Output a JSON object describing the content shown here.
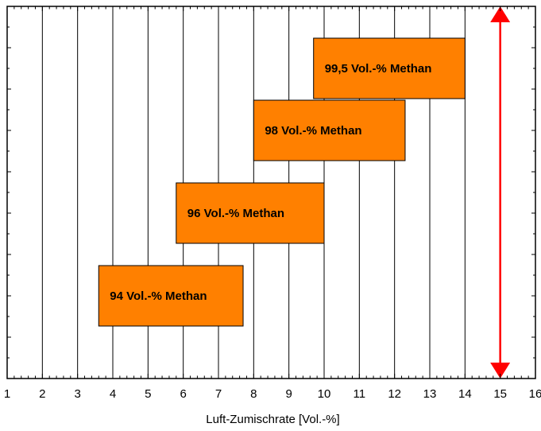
{
  "chart_data": {
    "type": "bar",
    "orientation": "horizontal-range",
    "title": "",
    "xlabel": "Luft-Zumischrate [Vol.-%]",
    "ylabel": "",
    "xlim": [
      1,
      16
    ],
    "xticks": [
      "1",
      "2",
      "3",
      "4",
      "5",
      "6",
      "7",
      "8",
      "9",
      "10",
      "11",
      "12",
      "13",
      "14",
      "15",
      "16"
    ],
    "grid": "vertical",
    "bar_color": "#ff8000",
    "bars": [
      {
        "label": "94 Vol.-% Methan",
        "start": 3.6,
        "end": 7.7
      },
      {
        "label": "96 Vol.-% Methan",
        "start": 5.8,
        "end": 10.0
      },
      {
        "label": "98 Vol.-% Methan",
        "start": 8.0,
        "end": 12.3
      },
      {
        "label": "99,5 Vol.-% Methan",
        "start": 9.7,
        "end": 14.0
      }
    ],
    "reference_line": {
      "x": 15,
      "color": "#ff0000",
      "style": "double-arrow"
    }
  }
}
